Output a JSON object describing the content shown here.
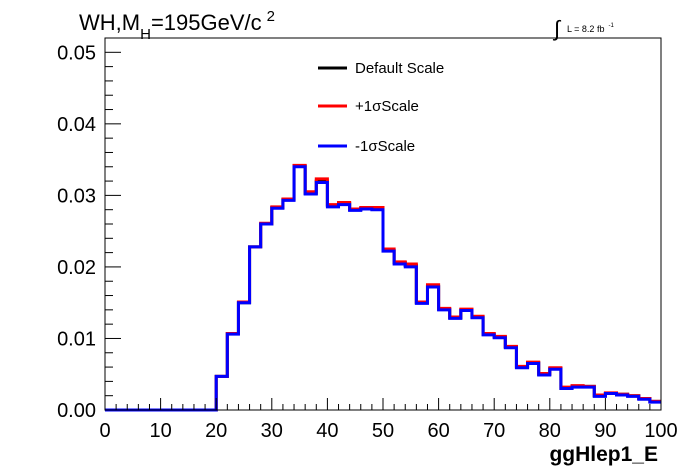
{
  "chart_data": {
    "type": "line",
    "drawstyle": "steps",
    "title": {
      "prefix": "WH,M",
      "subscript": "H",
      "main": "=195GeV/c",
      "superscript": "2"
    },
    "lumi": {
      "integral": "∫",
      "text": "L = 8.2 fb",
      "superscript": "-1"
    },
    "xlabel": "ggHlep1_E",
    "ylabel": "",
    "xlim": [
      0,
      100
    ],
    "ylim": [
      0,
      0.052
    ],
    "x_ticks": [
      "0",
      "10",
      "20",
      "30",
      "40",
      "50",
      "60",
      "70",
      "80",
      "90",
      "100"
    ],
    "y_ticks": [
      "0.00",
      "0.01",
      "0.02",
      "0.03",
      "0.04",
      "0.05"
    ],
    "grid": false,
    "legend_position": "top-center",
    "bin_width": 2,
    "bin_edges_start": 0,
    "series": [
      {
        "name": "Default Scale",
        "color": "#000000",
        "values": [
          0,
          0,
          0,
          0,
          0,
          0,
          0,
          0,
          0,
          0,
          0.0047,
          0.0107,
          0.015,
          0.0228,
          0.026,
          0.0283,
          0.0294,
          0.0341,
          0.0303,
          0.032,
          0.0286,
          0.0289,
          0.028,
          0.0282,
          0.0282,
          0.0223,
          0.0206,
          0.0202,
          0.015,
          0.0173,
          0.0141,
          0.0129,
          0.014,
          0.013,
          0.0106,
          0.0102,
          0.0088,
          0.006,
          0.0066,
          0.005,
          0.0058,
          0.003,
          0.0033,
          0.0033,
          0.002,
          0.0023,
          0.0022,
          0.002,
          0.0016,
          0.0012
        ]
      },
      {
        "name": "+1σScale",
        "color": "#ff0000",
        "values": [
          0,
          0,
          0,
          0,
          0,
          0,
          0,
          0,
          0,
          0,
          0.0047,
          0.0107,
          0.0151,
          0.0228,
          0.0261,
          0.0284,
          0.0295,
          0.0342,
          0.0305,
          0.0323,
          0.0287,
          0.029,
          0.0281,
          0.0283,
          0.0283,
          0.0225,
          0.0207,
          0.0204,
          0.0151,
          0.0175,
          0.0142,
          0.013,
          0.0141,
          0.0131,
          0.0107,
          0.0103,
          0.0089,
          0.0061,
          0.0067,
          0.0051,
          0.0059,
          0.0032,
          0.0034,
          0.0033,
          0.0021,
          0.0024,
          0.0022,
          0.002,
          0.0016,
          0.0012
        ]
      },
      {
        "name": "-1σScale",
        "color": "#0000ff",
        "values": [
          0,
          0,
          0,
          0,
          0,
          0,
          0,
          0,
          0,
          0,
          0.0047,
          0.0106,
          0.015,
          0.0228,
          0.026,
          0.0282,
          0.0293,
          0.034,
          0.0302,
          0.0318,
          0.0284,
          0.0287,
          0.0279,
          0.0281,
          0.028,
          0.0222,
          0.0204,
          0.02,
          0.0149,
          0.0172,
          0.014,
          0.0128,
          0.0139,
          0.0129,
          0.0105,
          0.0101,
          0.0087,
          0.0059,
          0.0065,
          0.0049,
          0.0057,
          0.003,
          0.0032,
          0.0032,
          0.0019,
          0.0023,
          0.0021,
          0.0019,
          0.0015,
          0.0011
        ]
      }
    ]
  }
}
